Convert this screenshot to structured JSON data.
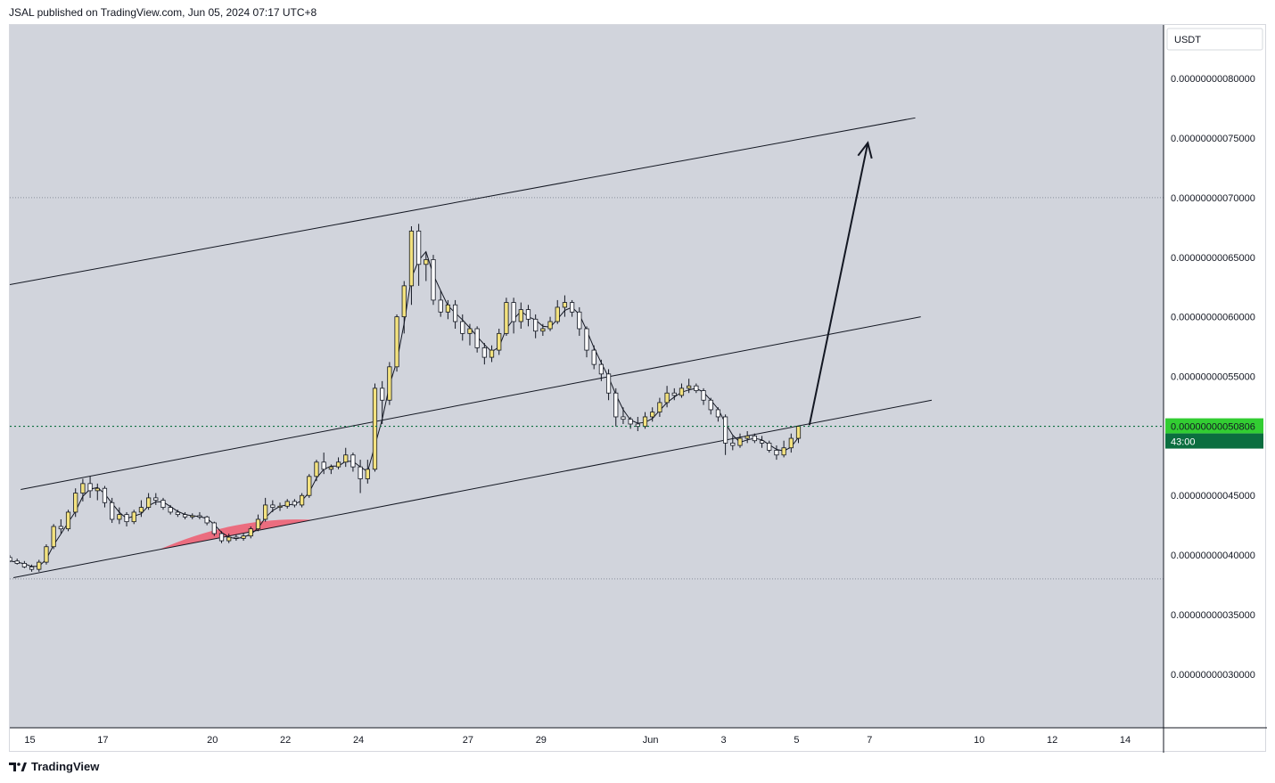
{
  "header": {
    "publisher_line": "JSAL published on TradingView.com, Jun 05, 2024 07:17 UTC+8"
  },
  "footer": {
    "brand": "TradingView",
    "logo_icon": "tradingview-logo-icon"
  },
  "chart_data": {
    "type": "candlestick",
    "currency_label": "USDT",
    "y_ticks": [
      "0.00000000080000",
      "0.00000000075000",
      "0.00000000070000",
      "0.00000000065000",
      "0.00000000060000",
      "0.00000000055000",
      "0.00000000045000",
      "0.00000000040000",
      "0.00000000035000",
      "0.00000000030000"
    ],
    "y_tick_values": [
      8e-10,
      7.5e-10,
      7e-10,
      6.5e-10,
      6e-10,
      5.5e-10,
      4.5e-10,
      4e-10,
      3.5e-10,
      3e-10
    ],
    "ylim": [
      2.55e-10,
      8.45e-10
    ],
    "x_ticks": [
      "15",
      "17",
      "20",
      "22",
      "24",
      "27",
      "29",
      "Jun",
      "3",
      "5",
      "7",
      "10",
      "12",
      "14"
    ],
    "x_tick_days": [
      15,
      17,
      20,
      22,
      24,
      27,
      29,
      32,
      34,
      36,
      38,
      41,
      43,
      45
    ],
    "x_range_days": [
      14.45,
      46.05
    ],
    "current_price": {
      "label": "0.00000000050806",
      "value": 5.0806e-10,
      "countdown": "43:00",
      "color": "#32cd32",
      "countdown_color": "#0b6e3f"
    },
    "dotted_levels": [
      7e-10,
      3.8e-10
    ],
    "colors": {
      "background": "#d1d4dc",
      "up_candle": "#f3e27f",
      "down_candle": "#ffffff",
      "wick": "#131722",
      "highlight": "#f05a6e",
      "current_line": "#0b6e3f"
    },
    "candles": [
      [
        14.45,
        3.98e-10,
        4e-10,
        3.94e-10,
        3.95e-10
      ],
      [
        14.65,
        3.95e-10,
        3.97e-10,
        3.92e-10,
        3.93e-10
      ],
      [
        14.85,
        3.93e-10,
        3.95e-10,
        3.89e-10,
        3.9e-10
      ],
      [
        15.05,
        3.9e-10,
        3.92e-10,
        3.86e-10,
        3.88e-10
      ],
      [
        15.25,
        3.88e-10,
        3.96e-10,
        3.86e-10,
        3.94e-10
      ],
      [
        15.45,
        3.94e-10,
        4.09e-10,
        3.92e-10,
        4.07e-10
      ],
      [
        15.65,
        4.07e-10,
        4.26e-10,
        4.05e-10,
        4.24e-10
      ],
      [
        15.85,
        4.24e-10,
        4.3e-10,
        4.18e-10,
        4.22e-10
      ],
      [
        16.05,
        4.22e-10,
        4.38e-10,
        4.2e-10,
        4.36e-10
      ],
      [
        16.25,
        4.36e-10,
        4.56e-10,
        4.32e-10,
        4.52e-10
      ],
      [
        16.45,
        4.52e-10,
        4.64e-10,
        4.45e-10,
        4.6e-10
      ],
      [
        16.65,
        4.6e-10,
        4.66e-10,
        4.48e-10,
        4.54e-10
      ],
      [
        16.85,
        4.54e-10,
        4.6e-10,
        4.46e-10,
        4.56e-10
      ],
      [
        17.05,
        4.56e-10,
        4.58e-10,
        4.4e-10,
        4.44e-10
      ],
      [
        17.25,
        4.44e-10,
        4.48e-10,
        4.27e-10,
        4.3e-10
      ],
      [
        17.45,
        4.3e-10,
        4.4e-10,
        4.26e-10,
        4.34e-10
      ],
      [
        17.65,
        4.34e-10,
        4.36e-10,
        4.24e-10,
        4.28e-10
      ],
      [
        17.85,
        4.28e-10,
        4.38e-10,
        4.26e-10,
        4.36e-10
      ],
      [
        18.05,
        4.36e-10,
        4.46e-10,
        4.32e-10,
        4.4e-10
      ],
      [
        18.25,
        4.4e-10,
        4.52e-10,
        4.38e-10,
        4.48e-10
      ],
      [
        18.45,
        4.48e-10,
        4.52e-10,
        4.42e-10,
        4.46e-10
      ],
      [
        18.65,
        4.46e-10,
        4.48e-10,
        4.38e-10,
        4.4e-10
      ],
      [
        18.85,
        4.4e-10,
        4.42e-10,
        4.34e-10,
        4.36e-10
      ],
      [
        19.05,
        4.36e-10,
        4.38e-10,
        4.32e-10,
        4.34e-10
      ],
      [
        19.25,
        4.34e-10,
        4.36e-10,
        4.3e-10,
        4.32e-10
      ],
      [
        19.45,
        4.32e-10,
        4.35e-10,
        4.3e-10,
        4.33e-10
      ],
      [
        19.65,
        4.33e-10,
        4.36e-10,
        4.3e-10,
        4.32e-10
      ],
      [
        19.85,
        4.32e-10,
        4.33e-10,
        4.25e-10,
        4.27e-10
      ],
      [
        20.05,
        4.27e-10,
        4.28e-10,
        4.16e-10,
        4.18e-10
      ],
      [
        20.25,
        4.18e-10,
        4.2e-10,
        4.1e-10,
        4.12e-10
      ],
      [
        20.45,
        4.12e-10,
        4.18e-10,
        4.1e-10,
        4.15e-10
      ],
      [
        20.65,
        4.15e-10,
        4.17e-10,
        4.12e-10,
        4.14e-10
      ],
      [
        20.85,
        4.14e-10,
        4.18e-10,
        4.12e-10,
        4.16e-10
      ],
      [
        21.05,
        4.16e-10,
        4.24e-10,
        4.14e-10,
        4.22e-10
      ],
      [
        21.25,
        4.22e-10,
        4.34e-10,
        4.2e-10,
        4.3e-10
      ],
      [
        21.45,
        4.3e-10,
        4.48e-10,
        4.28e-10,
        4.42e-10
      ],
      [
        21.65,
        4.42e-10,
        4.46e-10,
        4.36e-10,
        4.4e-10
      ],
      [
        21.85,
        4.4e-10,
        4.44e-10,
        4.37e-10,
        4.41e-10
      ],
      [
        22.05,
        4.41e-10,
        4.47e-10,
        4.39e-10,
        4.45e-10
      ],
      [
        22.25,
        4.45e-10,
        4.47e-10,
        4.4e-10,
        4.42e-10
      ],
      [
        22.45,
        4.42e-10,
        4.52e-10,
        4.4e-10,
        4.5e-10
      ],
      [
        22.65,
        4.5e-10,
        4.68e-10,
        4.48e-10,
        4.66e-10
      ],
      [
        22.85,
        4.66e-10,
        4.8e-10,
        4.62e-10,
        4.78e-10
      ],
      [
        23.05,
        4.78e-10,
        4.86e-10,
        4.68e-10,
        4.72e-10
      ],
      [
        23.25,
        4.72e-10,
        4.76e-10,
        4.68e-10,
        4.74e-10
      ],
      [
        23.45,
        4.74e-10,
        4.82e-10,
        4.72e-10,
        4.78e-10
      ],
      [
        23.65,
        4.78e-10,
        4.9e-10,
        4.74e-10,
        4.84e-10
      ],
      [
        23.85,
        4.84e-10,
        4.86e-10,
        4.7e-10,
        4.74e-10
      ],
      [
        24.05,
        4.74e-10,
        4.8e-10,
        4.52e-10,
        4.64e-10
      ],
      [
        24.25,
        4.64e-10,
        4.8e-10,
        4.6e-10,
        4.72e-10
      ],
      [
        24.45,
        4.72e-10,
        5.44e-10,
        4.7e-10,
        5.4e-10
      ],
      [
        24.65,
        5.4e-10,
        5.46e-10,
        5.1e-10,
        5.3e-10
      ],
      [
        24.85,
        5.3e-10,
        5.62e-10,
        5.26e-10,
        5.58e-10
      ],
      [
        25.05,
        5.58e-10,
        6.02e-10,
        5.54e-10,
        6e-10
      ],
      [
        25.25,
        6e-10,
        6.3e-10,
        5.86e-10,
        6.26e-10
      ],
      [
        25.45,
        6.26e-10,
        6.76e-10,
        6.1e-10,
        6.72e-10
      ],
      [
        25.65,
        6.72e-10,
        6.78e-10,
        6.26e-10,
        6.44e-10
      ],
      [
        25.85,
        6.44e-10,
        6.54e-10,
        6.3e-10,
        6.48e-10
      ],
      [
        26.05,
        6.48e-10,
        6.52e-10,
        6.1e-10,
        6.14e-10
      ],
      [
        26.25,
        6.14e-10,
        6.22e-10,
        6e-10,
        6.04e-10
      ],
      [
        26.45,
        6.04e-10,
        6.14e-10,
        5.98e-10,
        6.1e-10
      ],
      [
        26.65,
        6.1e-10,
        6.14e-10,
        5.9e-10,
        5.96e-10
      ],
      [
        26.85,
        5.96e-10,
        6.02e-10,
        5.8e-10,
        5.86e-10
      ],
      [
        27.05,
        5.86e-10,
        5.94e-10,
        5.76e-10,
        5.9e-10
      ],
      [
        27.25,
        5.9e-10,
        5.92e-10,
        5.7e-10,
        5.74e-10
      ],
      [
        27.45,
        5.74e-10,
        5.78e-10,
        5.6e-10,
        5.66e-10
      ],
      [
        27.65,
        5.66e-10,
        5.76e-10,
        5.62e-10,
        5.72e-10
      ],
      [
        27.85,
        5.72e-10,
        5.9e-10,
        5.68e-10,
        5.86e-10
      ],
      [
        28.05,
        5.86e-10,
        6.16e-10,
        5.84e-10,
        6.12e-10
      ],
      [
        28.25,
        6.12e-10,
        6.16e-10,
        5.86e-10,
        5.96e-10
      ],
      [
        28.45,
        5.96e-10,
        6.12e-10,
        5.9e-10,
        6.06e-10
      ],
      [
        28.65,
        6.06e-10,
        6.1e-10,
        5.92e-10,
        5.98e-10
      ],
      [
        28.85,
        5.98e-10,
        6.02e-10,
        5.82e-10,
        5.88e-10
      ],
      [
        29.05,
        5.88e-10,
        5.94e-10,
        5.84e-10,
        5.9e-10
      ],
      [
        29.25,
        5.9e-10,
        6e-10,
        5.88e-10,
        5.96e-10
      ],
      [
        29.45,
        5.96e-10,
        6.14e-10,
        5.94e-10,
        6.08e-10
      ],
      [
        29.65,
        6.08e-10,
        6.18e-10,
        6e-10,
        6.12e-10
      ],
      [
        29.85,
        6.12e-10,
        6.14e-10,
        6e-10,
        6.04e-10
      ],
      [
        30.05,
        6.04e-10,
        6.08e-10,
        5.84e-10,
        5.9e-10
      ],
      [
        30.25,
        5.9e-10,
        5.92e-10,
        5.66e-10,
        5.72e-10
      ],
      [
        30.45,
        5.72e-10,
        5.76e-10,
        5.56e-10,
        5.6e-10
      ],
      [
        30.65,
        5.6e-10,
        5.64e-10,
        5.46e-10,
        5.52e-10
      ],
      [
        30.85,
        5.52e-10,
        5.56e-10,
        5.3e-10,
        5.36e-10
      ],
      [
        31.05,
        5.36e-10,
        5.4e-10,
        5.08e-10,
        5.16e-10
      ],
      [
        31.25,
        5.16e-10,
        5.24e-10,
        5.1e-10,
        5.14e-10
      ],
      [
        31.45,
        5.14e-10,
        5.16e-10,
        5.06e-10,
        5.1e-10
      ],
      [
        31.65,
        5.1e-10,
        5.16e-10,
        5.04e-10,
        5.08e-10
      ],
      [
        31.85,
        5.08e-10,
        5.2e-10,
        5.06e-10,
        5.16e-10
      ],
      [
        32.05,
        5.16e-10,
        5.24e-10,
        5.12e-10,
        5.2e-10
      ],
      [
        32.25,
        5.2e-10,
        5.32e-10,
        5.16e-10,
        5.28e-10
      ],
      [
        32.45,
        5.28e-10,
        5.42e-10,
        5.24e-10,
        5.36e-10
      ],
      [
        32.65,
        5.36e-10,
        5.4e-10,
        5.3e-10,
        5.34e-10
      ],
      [
        32.85,
        5.34e-10,
        5.44e-10,
        5.32e-10,
        5.4e-10
      ],
      [
        33.05,
        5.4e-10,
        5.48e-10,
        5.36e-10,
        5.42e-10
      ],
      [
        33.25,
        5.42e-10,
        5.44e-10,
        5.36e-10,
        5.38e-10
      ],
      [
        33.45,
        5.38e-10,
        5.4e-10,
        5.26e-10,
        5.3e-10
      ],
      [
        33.65,
        5.3e-10,
        5.32e-10,
        5.18e-10,
        5.22e-10
      ],
      [
        33.85,
        5.22e-10,
        5.24e-10,
        5.12e-10,
        5.16e-10
      ],
      [
        34.05,
        5.16e-10,
        5.18e-10,
        4.84e-10,
        4.94e-10
      ],
      [
        34.25,
        4.94e-10,
        5e-10,
        4.88e-10,
        4.92e-10
      ],
      [
        34.45,
        4.92e-10,
        5.02e-10,
        4.9e-10,
        4.98e-10
      ],
      [
        34.65,
        4.98e-10,
        5.04e-10,
        4.94e-10,
        5e-10
      ],
      [
        34.85,
        5e-10,
        5.02e-10,
        4.94e-10,
        4.96e-10
      ],
      [
        35.05,
        4.96e-10,
        5e-10,
        4.9e-10,
        4.94e-10
      ],
      [
        35.25,
        4.94e-10,
        4.96e-10,
        4.86e-10,
        4.88e-10
      ],
      [
        35.45,
        4.88e-10,
        4.92e-10,
        4.8e-10,
        4.84e-10
      ],
      [
        35.65,
        4.84e-10,
        4.96e-10,
        4.82e-10,
        4.9e-10
      ],
      [
        35.85,
        4.9e-10,
        5.02e-10,
        4.86e-10,
        4.98e-10
      ],
      [
        36.05,
        4.98e-10,
        5.08e-10,
        4.94e-10,
        5.0806e-10
      ]
    ],
    "trendlines": [
      {
        "name": "channel-upper",
        "x1": 14.45,
        "y1": 6.27e-10,
        "x2": 39.25,
        "y2": 7.67e-10
      },
      {
        "name": "channel-mid",
        "x1": 14.75,
        "y1": 4.55e-10,
        "x2": 39.4,
        "y2": 6e-10
      },
      {
        "name": "channel-lower",
        "x1": 14.55,
        "y1": 3.81e-10,
        "x2": 39.7,
        "y2": 5.3e-10
      }
    ],
    "highlight_arcs": [
      {
        "x1": 18.55,
        "x2": 22.75,
        "top": 4.28e-10
      },
      {
        "x1": 33.95,
        "x2": 38.0,
        "top": 5.08e-10
      }
    ],
    "arrow": {
      "x1": 36.35,
      "y1": 5.09e-10,
      "x2": 37.95,
      "y2": 7.46e-10
    }
  }
}
